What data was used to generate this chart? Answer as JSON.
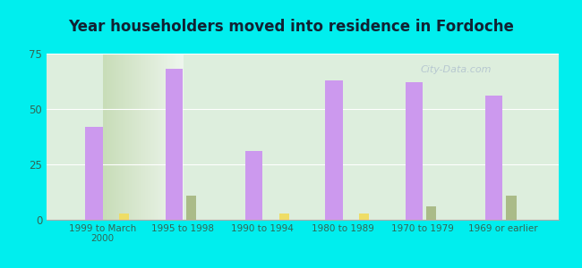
{
  "title": "Year householders moved into residence in Fordoche",
  "categories": [
    "1999 to March\n2000",
    "1995 to 1998",
    "1990 to 1994",
    "1980 to 1989",
    "1970 to 1979",
    "1969 or earlier"
  ],
  "white": [
    42,
    68,
    31,
    63,
    62,
    56
  ],
  "black": [
    0,
    11,
    0,
    0,
    6,
    11
  ],
  "hispanic": [
    3,
    0,
    3,
    3,
    0,
    0
  ],
  "white_color": "#cc99ee",
  "black_color": "#aabb88",
  "hispanic_color": "#eedd66",
  "bg_outer": "#00eeee",
  "bg_plot_left": "#d4e8c8",
  "bg_plot_right": "#f0f8f0",
  "ylim": [
    0,
    75
  ],
  "yticks": [
    0,
    25,
    50,
    75
  ],
  "bar_width": 0.18,
  "watermark": "City-Data.com"
}
